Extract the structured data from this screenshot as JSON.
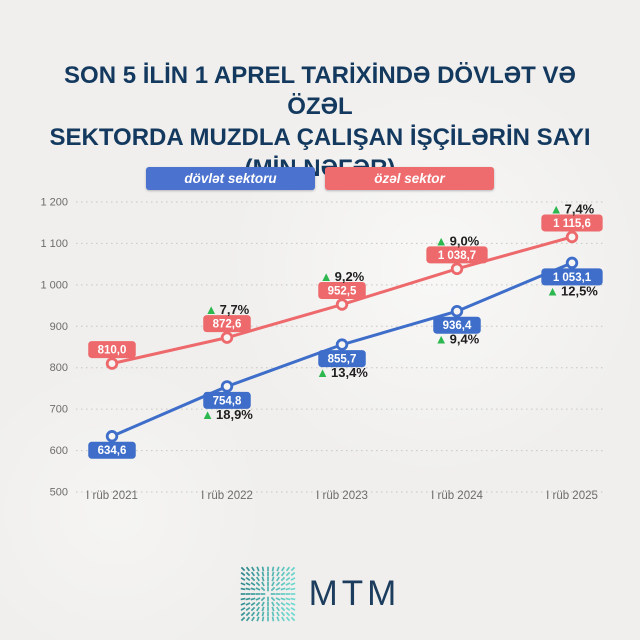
{
  "header": {
    "title_lines": [
      "SON 5 İLİN 1 APREL TARİXİNDƏ DÖVLƏT VƏ ÖZƏL",
      "SEKTORDA MUZDLA ÇALIŞAN İŞÇİLƏRİN SAYI",
      "(MİN NƏFƏR)"
    ],
    "title_color": "#14395f"
  },
  "legend": [
    {
      "label": "dövlət sektoru",
      "color": "#4a72ce"
    },
    {
      "label": "özəl sektor",
      "color": "#ee6b6e"
    }
  ],
  "icons": {
    "increase_arrow": "▲",
    "mtm_logo": "starburst-square"
  },
  "chart_data": {
    "type": "line",
    "title": "Son 5 ilin 1 aprel tarixində dövlət və özəl sektorda muzdla çalışan işçilərin sayı (min nəfər)",
    "x": [
      "I rüb 2021",
      "I rüb 2022",
      "I rüb 2023",
      "I rüb 2024",
      "I rüb 2025"
    ],
    "series": [
      {
        "id": "dovlet",
        "name": "dövlət sektoru",
        "color": "#3e6ec9",
        "values": [
          634.6,
          754.8,
          855.7,
          936.4,
          1053.1
        ],
        "value_labels": [
          "634,6",
          "754,8",
          "855,7",
          "936,4",
          "1 053,1"
        ],
        "pct_labels": [
          null,
          "18,9%",
          "13,4%",
          "9,4%",
          "12,5%"
        ],
        "label_side": "below"
      },
      {
        "id": "ozel",
        "name": "özəl sektor",
        "color": "#ed696c",
        "values": [
          810.0,
          872.6,
          952.5,
          1038.7,
          1115.6
        ],
        "value_labels": [
          "810,0",
          "872,6",
          "952,5",
          "1 038,7",
          "1 115,6"
        ],
        "pct_labels": [
          null,
          "7,7%",
          "9,2%",
          "9,0%",
          "7,4%"
        ],
        "label_side": "above"
      }
    ],
    "ylim": [
      500,
      1200
    ],
    "ytick_step": 100,
    "ytick_labels": [
      "500",
      "600",
      "700",
      "800",
      "900",
      "1 000",
      "1 100",
      "1 200"
    ],
    "grid": "horizontal-dashed",
    "legend_position": "top",
    "up_marker_color": "#2db84f"
  },
  "footer": {
    "logo_text": "MTM",
    "logo_colors": {
      "dark": "#2a8187",
      "light": "#6fd9d0",
      "text": "#1c3d5e"
    }
  }
}
